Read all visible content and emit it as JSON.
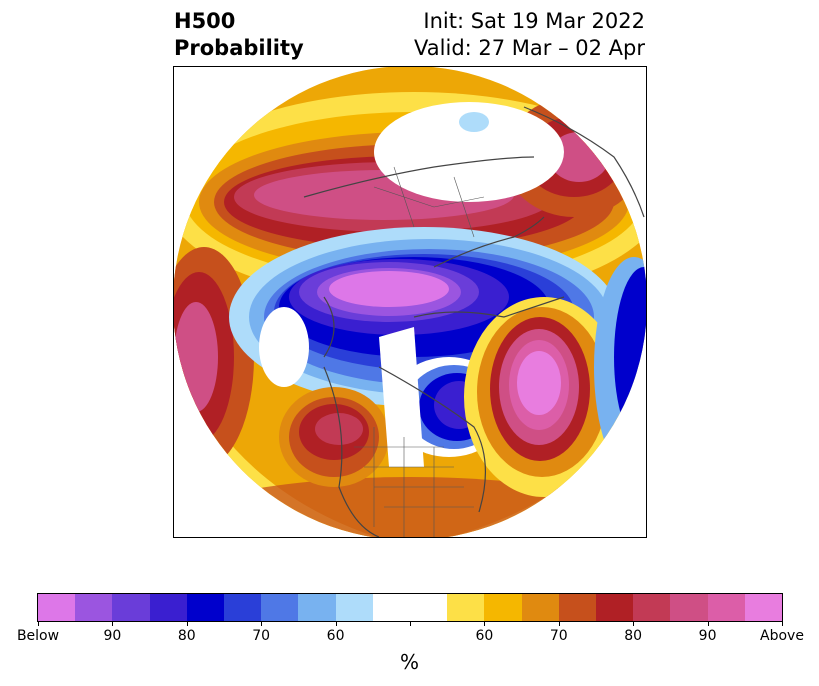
{
  "title": {
    "left_line1": "H500",
    "left_line2": "Probability",
    "right_line1": "Init: Sat 19 Mar 2022",
    "right_line2": "Valid: 27 Mar – 02 Apr"
  },
  "colorbar": {
    "colors": [
      "#dd77e8",
      "#9b55e0",
      "#6a3dd9",
      "#3a1fd0",
      "#0000cc",
      "#2a3fd8",
      "#4f78e6",
      "#78b2f0",
      "#aedcfa",
      "#ffffff",
      "#ffffff",
      "#fde047",
      "#f5b700",
      "#e08a10",
      "#c6501c",
      "#b02025",
      "#c23a55",
      "#cf4f85",
      "#dc5ea8",
      "#e87ddf"
    ],
    "ticks": [
      {
        "label": "Below",
        "index": 0
      },
      {
        "label": "90",
        "index": 2
      },
      {
        "label": "80",
        "index": 4
      },
      {
        "label": "70",
        "index": 6
      },
      {
        "label": "60",
        "index": 8
      },
      {
        "label": "",
        "index": 10
      },
      {
        "label": "60",
        "index": 12
      },
      {
        "label": "70",
        "index": 14
      },
      {
        "label": "80",
        "index": 16
      },
      {
        "label": "90",
        "index": 18
      },
      {
        "label": "Above",
        "index": 20
      }
    ],
    "unit": "%"
  },
  "map": {
    "projection": "north-polar-stereographic",
    "features": [
      "below-normal trough over central Canada and Arctic",
      "below-normal trough over Great Lakes / eastern North America",
      "above-normal ridge over western North America",
      "above-normal ridge over North Atlantic",
      "above-normal band over northern Eurasia",
      "above-normal region over North Pacific"
    ],
    "colors": {
      "coast": "#444444",
      "border": "#555555"
    }
  }
}
